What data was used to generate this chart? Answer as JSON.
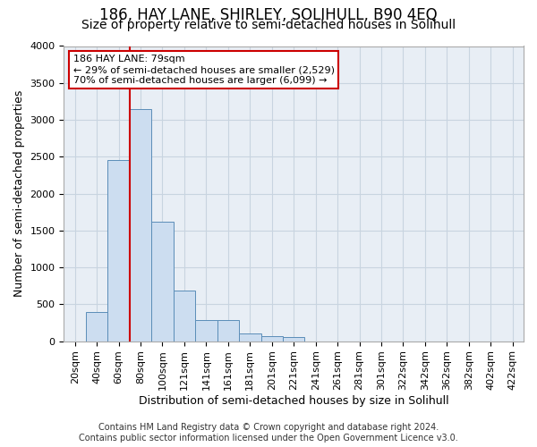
{
  "title": "186, HAY LANE, SHIRLEY, SOLIHULL, B90 4EQ",
  "subtitle": "Size of property relative to semi-detached houses in Solihull",
  "xlabel": "Distribution of semi-detached houses by size in Solihull",
  "ylabel": "Number of semi-detached properties",
  "footer_line1": "Contains HM Land Registry data © Crown copyright and database right 2024.",
  "footer_line2": "Contains public sector information licensed under the Open Government Licence v3.0.",
  "annotation_line1": "186 HAY LANE: 79sqm",
  "annotation_line2": "← 29% of semi-detached houses are smaller (2,529)",
  "annotation_line3": "70% of semi-detached houses are larger (6,099) →",
  "bar_categories": [
    "20sqm",
    "40sqm",
    "60sqm",
    "80sqm",
    "100sqm",
    "121sqm",
    "141sqm",
    "161sqm",
    "181sqm",
    "201sqm",
    "221sqm",
    "241sqm",
    "261sqm",
    "281sqm",
    "301sqm",
    "322sqm",
    "342sqm",
    "362sqm",
    "382sqm",
    "402sqm",
    "422sqm"
  ],
  "bar_values": [
    0,
    390,
    2450,
    3150,
    1620,
    680,
    280,
    280,
    110,
    70,
    60,
    0,
    0,
    0,
    0,
    0,
    0,
    0,
    0,
    0,
    0
  ],
  "bar_color": "#ccddf0",
  "bar_edge_color": "#5b8db8",
  "vline_color": "#cc0000",
  "vline_x_index": 2.5,
  "box_edge_color": "#cc0000",
  "ylim": [
    0,
    4000
  ],
  "yticks": [
    0,
    500,
    1000,
    1500,
    2000,
    2500,
    3000,
    3500,
    4000
  ],
  "grid_color": "#c8d4e0",
  "bg_color": "#e8eef5",
  "title_fontsize": 12,
  "subtitle_fontsize": 10,
  "axis_label_fontsize": 9,
  "tick_fontsize": 8,
  "annotation_fontsize": 8,
  "footer_fontsize": 7
}
